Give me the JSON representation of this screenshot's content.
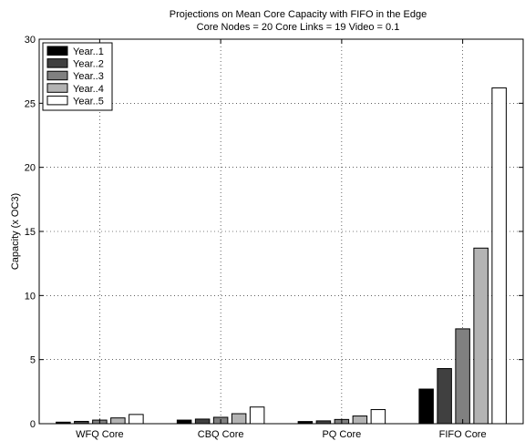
{
  "chart_data": {
    "type": "bar",
    "title": "Projections on Mean Core Capacity with FIFO in the Edge",
    "subtitle": "Core Nodes = 20 Core Links = 19 Video = 0.1",
    "xlabel": "",
    "ylabel": "Capacity (x OC3)",
    "ylim": [
      0,
      30
    ],
    "yticks": [
      0,
      5,
      10,
      15,
      20,
      25,
      30
    ],
    "grid": true,
    "legend_position": "top-left",
    "categories": [
      "WFQ Core",
      "CBQ Core",
      "PQ Core",
      "FIFO Core"
    ],
    "series": [
      {
        "name": "Year..1",
        "color": "#000000",
        "values": [
          0.12,
          0.28,
          0.17,
          2.7
        ]
      },
      {
        "name": "Year..2",
        "color": "#404040",
        "values": [
          0.18,
          0.36,
          0.22,
          4.3
        ]
      },
      {
        "name": "Year..3",
        "color": "#808080",
        "values": [
          0.28,
          0.5,
          0.33,
          7.4
        ]
      },
      {
        "name": "Year..4",
        "color": "#b3b3b3",
        "values": [
          0.45,
          0.78,
          0.6,
          13.7
        ]
      },
      {
        "name": "Year..5",
        "color": "#ffffff",
        "values": [
          0.72,
          1.3,
          1.1,
          26.2
        ]
      }
    ]
  }
}
